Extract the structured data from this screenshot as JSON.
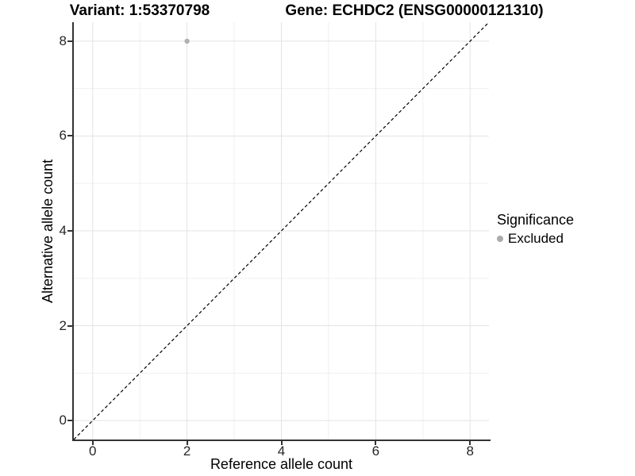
{
  "chart_data": {
    "type": "scatter",
    "title_parts": [
      "Variant: 1:53370798",
      "Gene: ECHDC2 (ENSG00000121310)"
    ],
    "xlabel": "Reference allele count",
    "ylabel": "Alternative allele count",
    "xlim": [
      -0.4,
      8.4
    ],
    "ylim": [
      -0.4,
      8.4
    ],
    "x_major_ticks": [
      0,
      2,
      4,
      6,
      8
    ],
    "y_major_ticks": [
      0,
      2,
      4,
      6,
      8
    ],
    "x_minor_ticks": [
      1,
      3,
      5,
      7
    ],
    "y_minor_ticks": [
      1,
      3,
      5,
      7
    ],
    "grid": "major and minor gridlines on white panel",
    "reference_line": {
      "type": "identity",
      "slope": 1,
      "intercept": 0,
      "style": "dashed",
      "color": "#000000"
    },
    "series": [
      {
        "name": "Excluded",
        "color": "#b0b0b0",
        "points": [
          {
            "x": 2,
            "y": 8
          }
        ]
      }
    ],
    "legend": {
      "title": "Significance",
      "position": "right",
      "entries": [
        {
          "label": "Excluded",
          "color": "#ababab",
          "marker": "circle"
        }
      ]
    }
  },
  "colors": {
    "background": "#ffffff",
    "axis_line": "#333333",
    "grid_major": "#e3e3e3",
    "grid_minor": "#f0f0f0",
    "tick_label": "#262626",
    "title": "#000000"
  }
}
